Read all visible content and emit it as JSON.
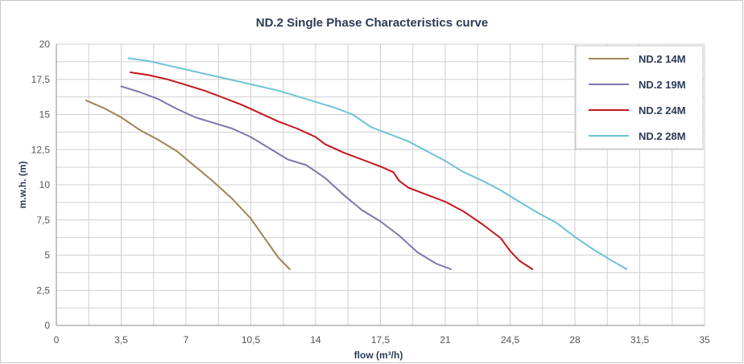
{
  "chart_data": {
    "type": "line",
    "title": "ND.2 Single Phase Characteristics curve",
    "xlabel": "flow (m³/h)",
    "ylabel": "m.w.h. (m)",
    "xlim": [
      0,
      35
    ],
    "ylim": [
      0,
      20
    ],
    "x_ticks": [
      "0",
      "3,5",
      "7",
      "10,5",
      "14",
      "17,5",
      "21",
      "24,5",
      "28",
      "31,5",
      "35"
    ],
    "y_ticks": [
      "0",
      "2,5",
      "5",
      "7,5",
      "10",
      "12,5",
      "15",
      "17,5",
      "20"
    ],
    "grid": true,
    "legend_position": "top-right",
    "series": [
      {
        "name": "ND.2 14M",
        "color": "#a08455",
        "points": [
          [
            1.6,
            16
          ],
          [
            2.5,
            15.5
          ],
          [
            3.5,
            14.8
          ],
          [
            4.5,
            13.9
          ],
          [
            5.5,
            13.2
          ],
          [
            6.5,
            12.4
          ],
          [
            7.5,
            11.3
          ],
          [
            8.5,
            10.2
          ],
          [
            9.5,
            9
          ],
          [
            10.5,
            7.6
          ],
          [
            11.3,
            6.1
          ],
          [
            12,
            4.8
          ],
          [
            12.6,
            4
          ]
        ]
      },
      {
        "name": "ND.2 19M",
        "color": "#7b78ab",
        "points": [
          [
            3.5,
            17
          ],
          [
            4.5,
            16.6
          ],
          [
            5.5,
            16.1
          ],
          [
            6.5,
            15.4
          ],
          [
            7.5,
            14.8
          ],
          [
            8.5,
            14.4
          ],
          [
            9.5,
            14
          ],
          [
            10.5,
            13.4
          ],
          [
            11.5,
            12.6
          ],
          [
            12.5,
            11.8
          ],
          [
            13.5,
            11.4
          ],
          [
            14.5,
            10.5
          ],
          [
            15.5,
            9.3
          ],
          [
            16.5,
            8.2
          ],
          [
            17.5,
            7.4
          ],
          [
            18.5,
            6.4
          ],
          [
            19.5,
            5.2
          ],
          [
            20.5,
            4.4
          ],
          [
            21.3,
            4
          ]
        ]
      },
      {
        "name": "ND.2 24M",
        "color": "#c4161c",
        "points": [
          [
            4,
            18
          ],
          [
            5,
            17.8
          ],
          [
            6,
            17.5
          ],
          [
            7,
            17.1
          ],
          [
            8,
            16.7
          ],
          [
            9,
            16.2
          ],
          [
            10,
            15.7
          ],
          [
            11,
            15.1
          ],
          [
            12,
            14.5
          ],
          [
            13,
            14
          ],
          [
            14,
            13.4
          ],
          [
            14.5,
            12.9
          ],
          [
            15.5,
            12.3
          ],
          [
            16.5,
            11.8
          ],
          [
            17.5,
            11.3
          ],
          [
            18.2,
            10.9
          ],
          [
            18.5,
            10.3
          ],
          [
            19,
            9.8
          ],
          [
            20,
            9.3
          ],
          [
            21,
            8.8
          ],
          [
            22,
            8.1
          ],
          [
            23,
            7.2
          ],
          [
            24,
            6.2
          ],
          [
            24.5,
            5.3
          ],
          [
            25,
            4.6
          ],
          [
            25.7,
            4
          ]
        ]
      },
      {
        "name": "ND.2 28M",
        "color": "#6ec2d6",
        "points": [
          [
            3.9,
            19
          ],
          [
            5,
            18.8
          ],
          [
            6,
            18.5
          ],
          [
            7,
            18.2
          ],
          [
            8,
            17.9
          ],
          [
            9,
            17.6
          ],
          [
            10,
            17.3
          ],
          [
            11,
            17
          ],
          [
            12,
            16.7
          ],
          [
            13,
            16.3
          ],
          [
            14,
            15.9
          ],
          [
            15,
            15.5
          ],
          [
            16,
            15
          ],
          [
            17,
            14.1
          ],
          [
            18,
            13.6
          ],
          [
            19,
            13.1
          ],
          [
            20,
            12.4
          ],
          [
            21,
            11.7
          ],
          [
            22,
            10.9
          ],
          [
            23,
            10.3
          ],
          [
            24,
            9.6
          ],
          [
            25,
            8.8
          ],
          [
            26,
            8
          ],
          [
            27,
            7.3
          ],
          [
            28,
            6.3
          ],
          [
            29,
            5.4
          ],
          [
            30,
            4.6
          ],
          [
            30.8,
            4
          ]
        ]
      }
    ]
  }
}
